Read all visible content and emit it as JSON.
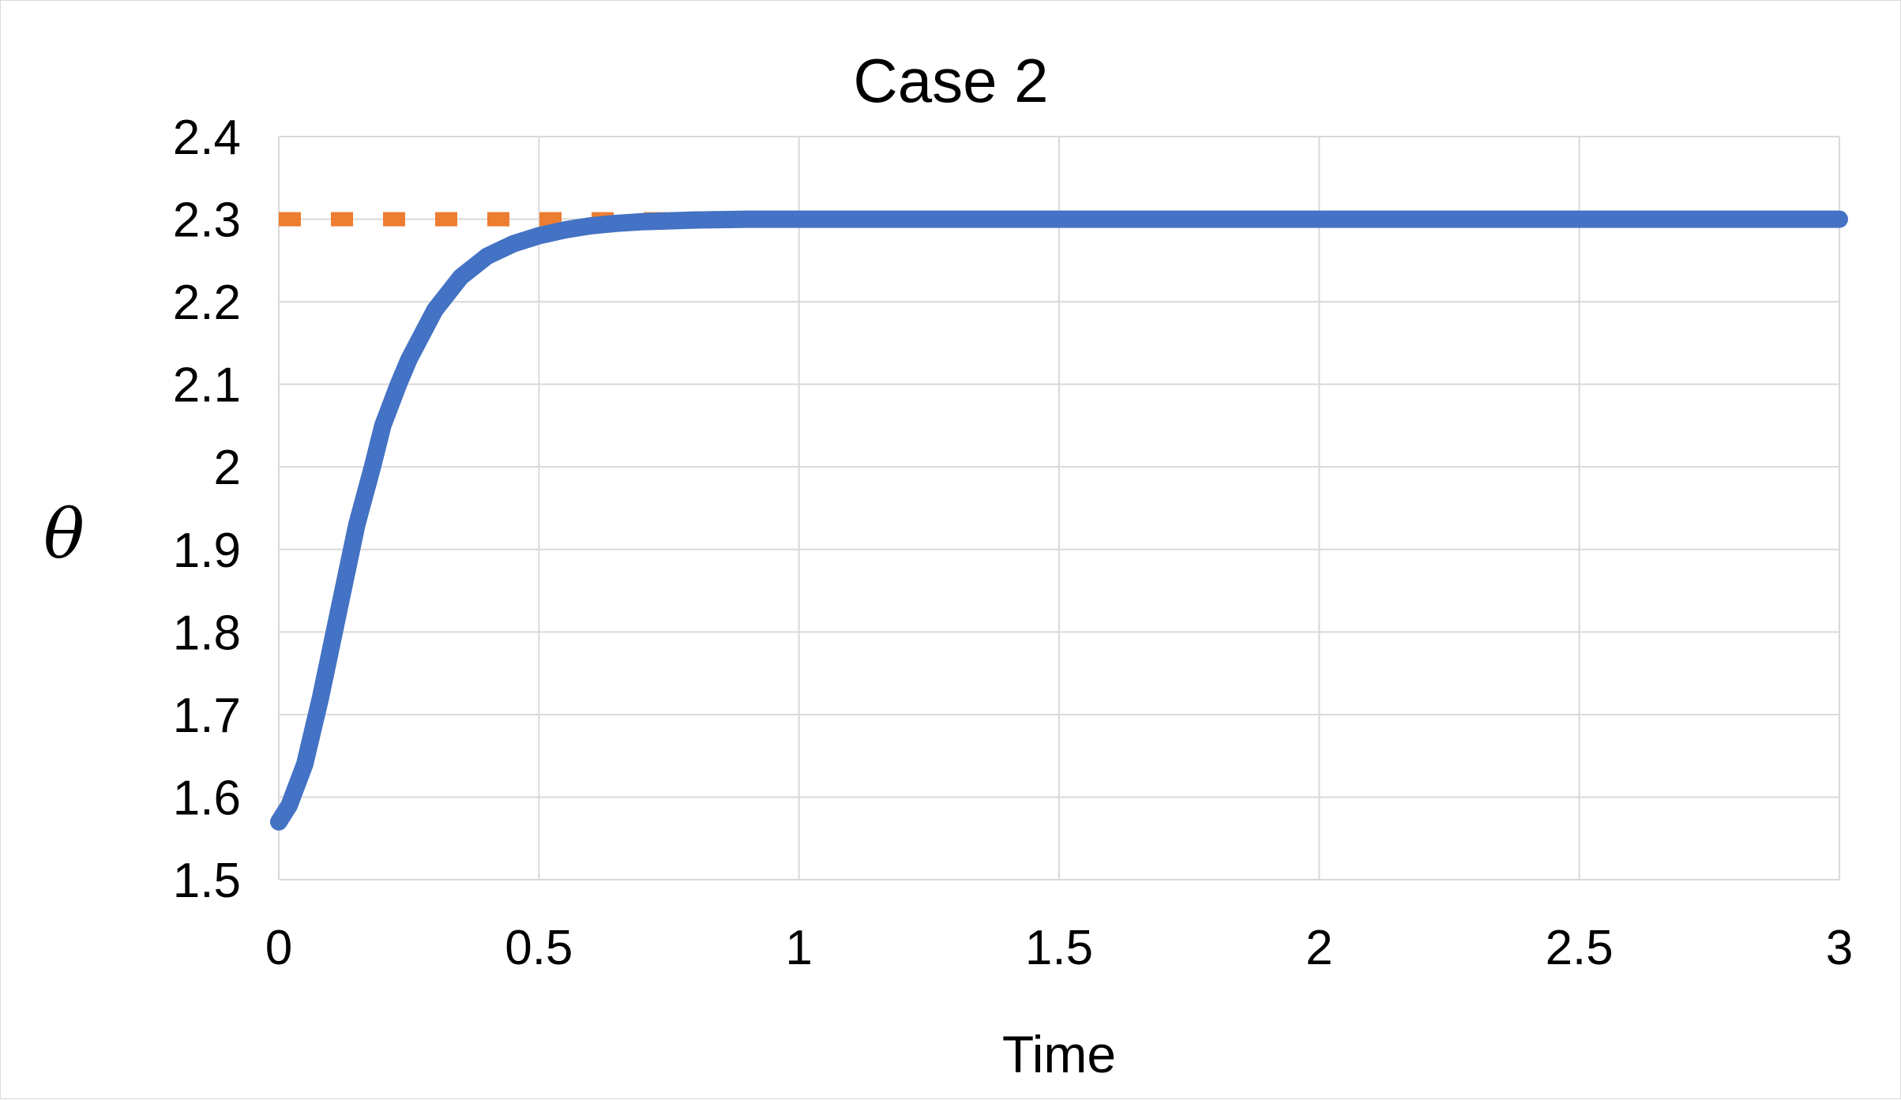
{
  "chart_data": {
    "type": "line",
    "title": "Case 2",
    "xlabel": "Time",
    "ylabel": "θ",
    "xlim": [
      0,
      3
    ],
    "ylim": [
      1.5,
      2.4
    ],
    "x_ticks": [
      "0",
      "0.5",
      "1",
      "1.5",
      "2",
      "2.5",
      "3"
    ],
    "y_ticks": [
      "1.5",
      "1.6",
      "1.7",
      "1.8",
      "1.9",
      "2",
      "2.1",
      "2.2",
      "2.3",
      "2.4"
    ],
    "grid": true,
    "legend": "none",
    "series": [
      {
        "style": "solid",
        "color": "#4472c4",
        "x": [
          0,
          0.02,
          0.05,
          0.08,
          0.1,
          0.12,
          0.15,
          0.18,
          0.2,
          0.23,
          0.25,
          0.3,
          0.35,
          0.4,
          0.45,
          0.5,
          0.55,
          0.6,
          0.65,
          0.7,
          0.8,
          0.9,
          1.0,
          1.2,
          1.5,
          2.0,
          2.5,
          3.0
        ],
        "y": [
          1.57,
          1.59,
          1.64,
          1.72,
          1.78,
          1.84,
          1.93,
          2.0,
          2.05,
          2.1,
          2.13,
          2.19,
          2.23,
          2.255,
          2.27,
          2.28,
          2.287,
          2.292,
          2.295,
          2.297,
          2.299,
          2.3,
          2.3,
          2.3,
          2.3,
          2.3,
          2.3,
          2.3
        ]
      },
      {
        "style": "dashed",
        "color": "#ed7d31",
        "x": [
          0,
          3
        ],
        "y": [
          2.3,
          2.3
        ]
      }
    ]
  }
}
